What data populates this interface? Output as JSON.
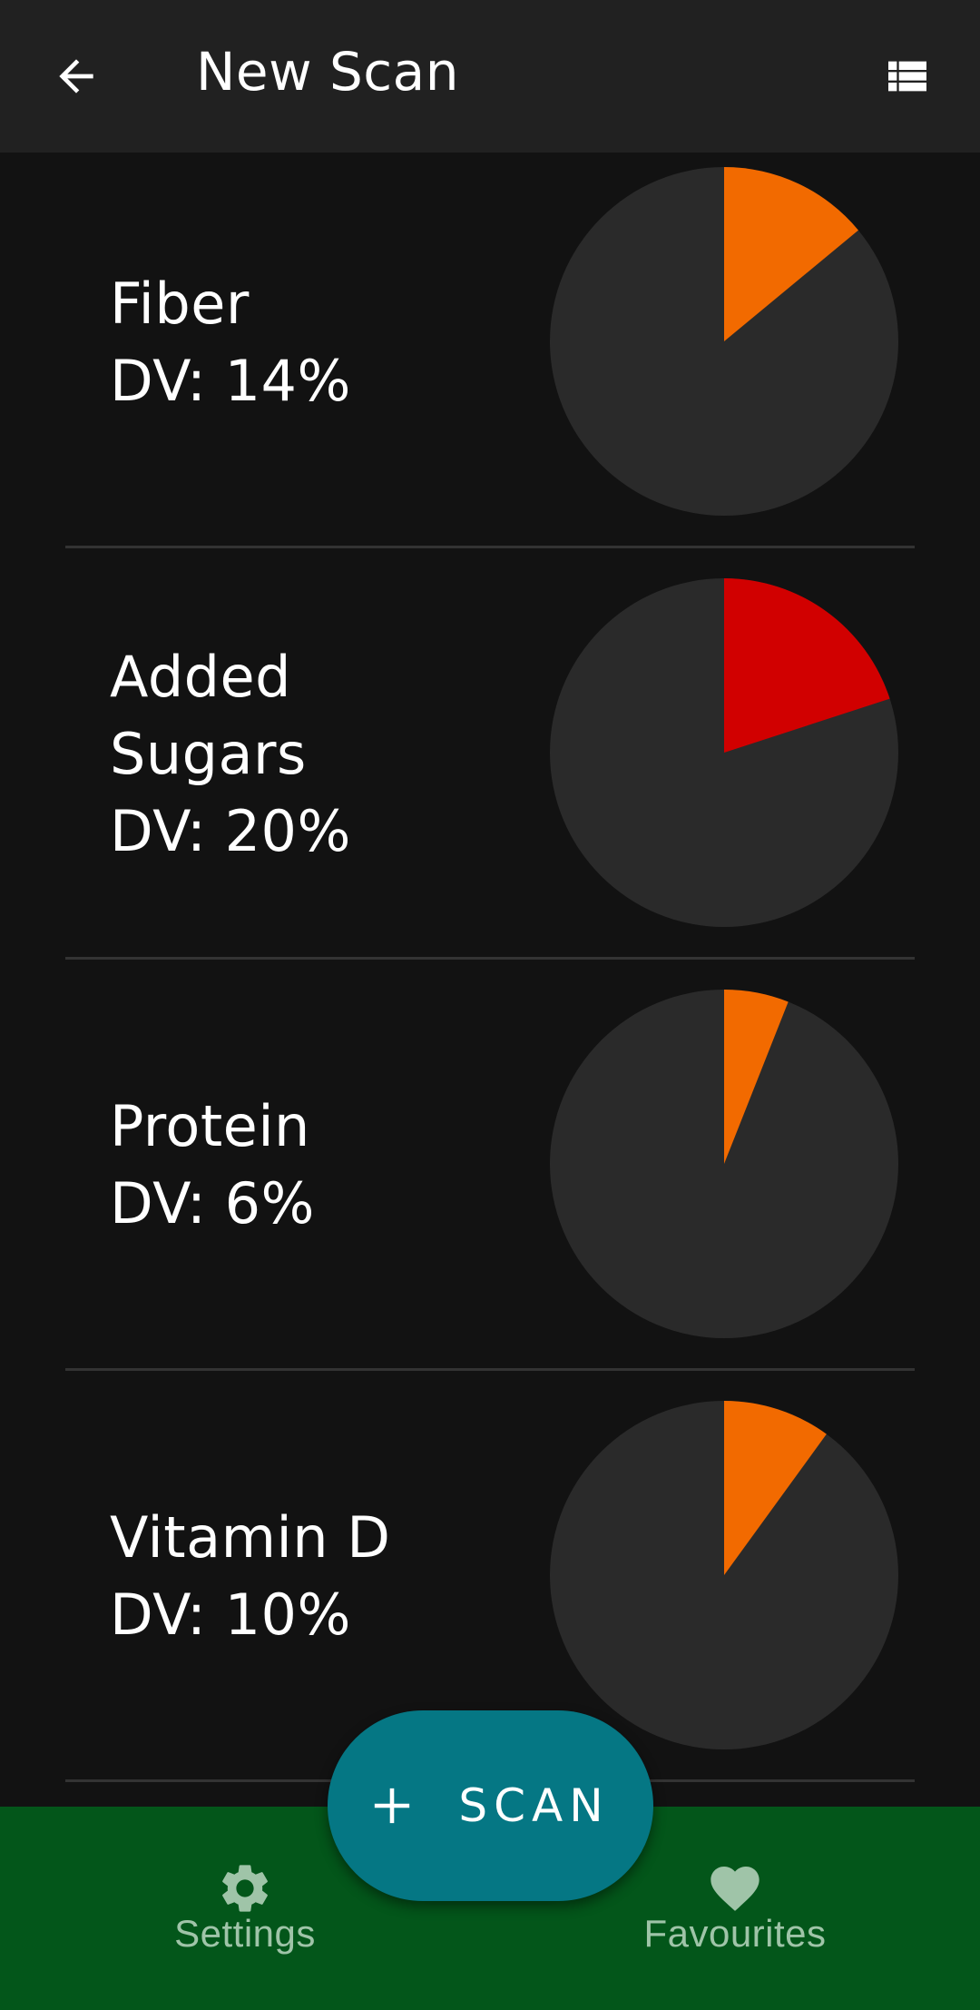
{
  "header": {
    "title": "New Scan",
    "back_icon": "arrow-left-icon",
    "list_icon": "view-list-icon"
  },
  "nutrients": [
    {
      "name": "Fiber",
      "dv_text": "DV: 14%",
      "dv_percent": 14,
      "color": "#f26a00"
    },
    {
      "name": "Added Sugars",
      "name_lines": [
        "Added",
        "Sugars"
      ],
      "dv_text": "DV: 20%",
      "dv_percent": 20,
      "color": "#d10000"
    },
    {
      "name": "Protein",
      "dv_text": "DV: 6%",
      "dv_percent": 6,
      "color": "#f26a00"
    },
    {
      "name": "Vitamin D",
      "dv_text": "DV: 10%",
      "dv_percent": 10,
      "color": "#f26a00"
    }
  ],
  "pie_background_color": "#2a2a2a",
  "fab": {
    "label": "SCAN",
    "icon": "plus-icon",
    "color": "#057784"
  },
  "bottom_nav": {
    "background": "#03561a",
    "items": [
      {
        "label": "Settings",
        "icon": "gear-icon"
      },
      {
        "label": "Favourites",
        "icon": "heart-icon"
      }
    ]
  }
}
